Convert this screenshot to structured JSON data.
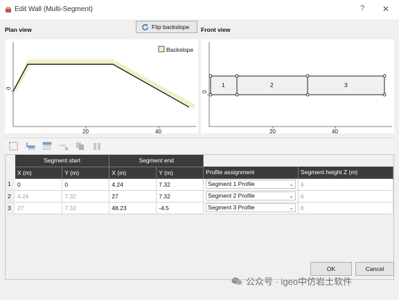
{
  "window": {
    "title": "Edit Wall (Multi-Segment)",
    "help_label": "?",
    "close_label": "✕"
  },
  "plan_view": {
    "label": "Plan view",
    "legend_label": "Backslope",
    "y_tick": "0",
    "x_ticks": [
      "20",
      "40"
    ]
  },
  "front_view": {
    "label": "Front view",
    "y_tick": "0",
    "x_ticks": [
      "20",
      "40"
    ],
    "segment_labels": [
      "1",
      "2",
      "3"
    ]
  },
  "flip_button": {
    "label": "Flip backslope",
    "icon": "refresh-icon"
  },
  "toolbar": {
    "icons": [
      "select-all-icon",
      "insert-row-icon",
      "add-row-icon",
      "delete-row-icon",
      "copy-icon",
      "paste-icon"
    ]
  },
  "table": {
    "group_headers": [
      "Segment start",
      "Segment end"
    ],
    "columns": [
      "X (m)",
      "Y (m)",
      "X (m)",
      "Y (m)",
      "Profile assignment",
      "Segment height Z (m)"
    ],
    "rows": [
      {
        "num": "1",
        "x_start": "0",
        "y_start": "0",
        "x_end": "4.24",
        "y_end": "7.32",
        "profile": "Segment 1 Profile",
        "height": "6"
      },
      {
        "num": "2",
        "x_start": "4.24",
        "y_start": "7.32",
        "x_end": "27",
        "y_end": "7.32",
        "profile": "Segment 2 Profile",
        "height": "6"
      },
      {
        "num": "3",
        "x_start": "27",
        "y_start": "7.32",
        "x_end": "48.23",
        "y_end": "-4.5",
        "profile": "Segment 3 Profile",
        "height": "6"
      }
    ]
  },
  "buttons": {
    "ok": "OK",
    "cancel": "Cancel"
  },
  "watermark": {
    "text": "公众号 · igeo中仿岩土软件"
  },
  "colors": {
    "backslope_fill": "#f0efc6",
    "header_dark": "#3b3b3b",
    "plot_line": "#222222"
  }
}
